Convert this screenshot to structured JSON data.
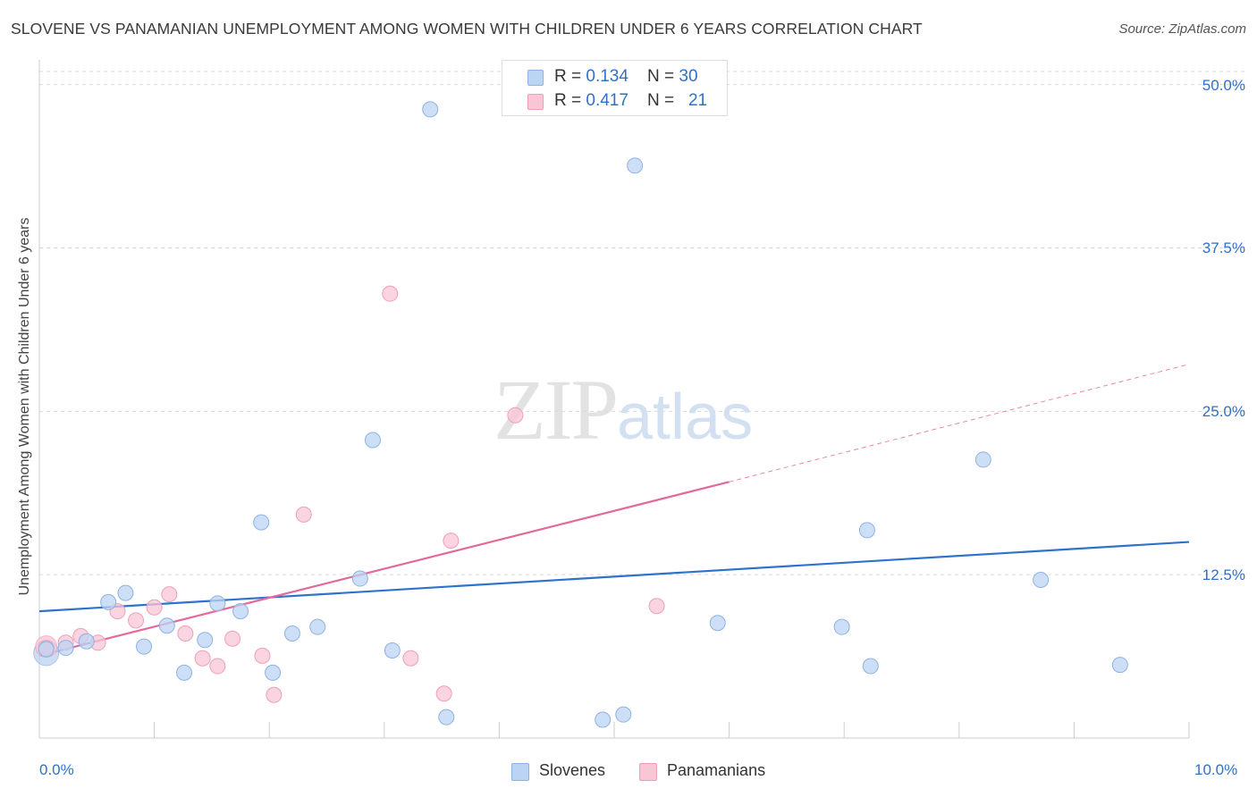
{
  "title": "SLOVENE VS PANAMANIAN UNEMPLOYMENT AMONG WOMEN WITH CHILDREN UNDER 6 YEARS CORRELATION CHART",
  "source": "Source: ZipAtlas.com",
  "watermark": {
    "part1": "ZIP",
    "part2": "atlas"
  },
  "legend": [
    {
      "r_label": "R = ",
      "r_value": "0.134",
      "n_label": "N = ",
      "n_value": "30",
      "color": "#a9c8f0"
    },
    {
      "r_label": "R = ",
      "r_value": "0.417",
      "n_label": "N = ",
      "n_value": "21",
      "color": "#f6b6c9"
    }
  ],
  "colors": {
    "slovenes_fill": "#bcd4f3",
    "slovenes_stroke": "#8fb2e2",
    "slovenes_line": "#2f72cc",
    "panamanians_fill": "#f8c6d5",
    "panamanians_stroke": "#eea0b8",
    "panamanians_line": "#e2699a",
    "grid": "#d9d9d9",
    "tick_label": "#3070c8"
  },
  "chart_data": {
    "type": "scatter",
    "title": "SLOVENE VS PANAMANIAN UNEMPLOYMENT AMONG WOMEN WITH CHILDREN UNDER 6 YEARS CORRELATION CHART",
    "xlabel": "",
    "ylabel": "Unemployment Among Women with Children Under 6 years",
    "xlim": [
      0,
      10
    ],
    "ylim": [
      0,
      51
    ],
    "x_ticks": [
      "0.0%",
      "10.0%"
    ],
    "y_ticks": [
      {
        "value": 12.5,
        "label": "12.5%"
      },
      {
        "value": 25.0,
        "label": "25.0%"
      },
      {
        "value": 37.5,
        "label": "37.5%"
      },
      {
        "value": 50.0,
        "label": "50.0%"
      }
    ],
    "grid": "horizontal dashed",
    "legend_position": "bottom",
    "series": [
      {
        "name": "Slovenes",
        "r": 0.134,
        "n": 30,
        "points": [
          [
            0.06,
            6.8
          ],
          [
            0.23,
            6.9
          ],
          [
            0.41,
            7.4
          ],
          [
            0.6,
            10.4
          ],
          [
            0.75,
            11.1
          ],
          [
            0.91,
            7.0
          ],
          [
            1.11,
            8.6
          ],
          [
            1.26,
            5.0
          ],
          [
            1.44,
            7.5
          ],
          [
            1.55,
            10.3
          ],
          [
            1.75,
            9.7
          ],
          [
            1.93,
            16.5
          ],
          [
            2.03,
            5.0
          ],
          [
            2.2,
            8.0
          ],
          [
            2.42,
            8.5
          ],
          [
            2.79,
            12.2
          ],
          [
            2.9,
            22.8
          ],
          [
            3.07,
            6.7
          ],
          [
            3.4,
            48.1
          ],
          [
            3.54,
            1.6
          ],
          [
            4.9,
            1.4
          ],
          [
            5.08,
            1.8
          ],
          [
            5.18,
            43.8
          ],
          [
            5.9,
            8.8
          ],
          [
            6.98,
            8.5
          ],
          [
            7.2,
            15.9
          ],
          [
            7.23,
            5.5
          ],
          [
            8.21,
            21.3
          ],
          [
            8.71,
            12.1
          ],
          [
            9.4,
            5.6
          ]
        ],
        "trend": {
          "x0": 0.0,
          "y0": 9.7,
          "x1": 10.0,
          "y1": 15.0
        }
      },
      {
        "name": "Panamanians",
        "r": 0.417,
        "n": 21,
        "points": [
          [
            0.06,
            6.9
          ],
          [
            0.23,
            7.3
          ],
          [
            0.36,
            7.8
          ],
          [
            0.51,
            7.3
          ],
          [
            0.68,
            9.7
          ],
          [
            0.84,
            9.0
          ],
          [
            1.0,
            10.0
          ],
          [
            1.13,
            11.0
          ],
          [
            1.27,
            8.0
          ],
          [
            1.42,
            6.1
          ],
          [
            1.55,
            5.5
          ],
          [
            1.68,
            7.6
          ],
          [
            1.94,
            6.3
          ],
          [
            2.04,
            3.3
          ],
          [
            2.3,
            17.1
          ],
          [
            3.05,
            34.0
          ],
          [
            3.23,
            6.1
          ],
          [
            3.52,
            3.4
          ],
          [
            3.58,
            15.1
          ],
          [
            4.14,
            24.7
          ],
          [
            5.37,
            10.1
          ]
        ],
        "trend": {
          "x0": 0.0,
          "y0": 6.3,
          "x1": 6.0,
          "y1": 19.6
        },
        "trend_extension": {
          "x0": 6.0,
          "y0": 19.6,
          "x1": 10.0,
          "y1": 28.6
        }
      }
    ]
  }
}
